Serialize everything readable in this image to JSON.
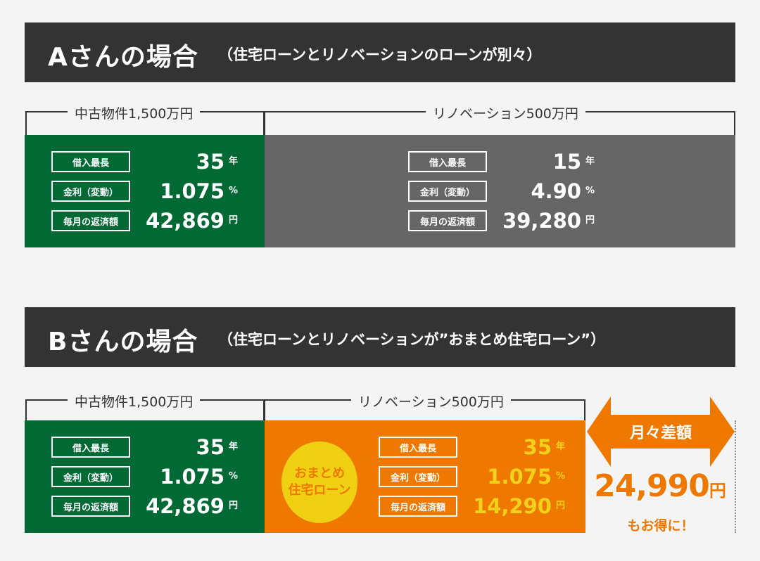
{
  "case_a": {
    "title": "Aさんの場合",
    "subtitle": "（住宅ローンとリノベーションのローンが別々）",
    "property_label": "中古物件1,500万円",
    "renovation_label": "リノベーション500万円",
    "property": {
      "rows": [
        {
          "label": "借入最長",
          "value": "35",
          "unit": "年"
        },
        {
          "label": "金利（変動）",
          "value": "1.075",
          "unit": "%"
        },
        {
          "label": "毎月の返済額",
          "value": "42,869",
          "unit": "円"
        }
      ]
    },
    "renovation": {
      "rows": [
        {
          "label": "借入最長",
          "value": "15",
          "unit": "年"
        },
        {
          "label": "金利（変動）",
          "value": "4.90",
          "unit": "%"
        },
        {
          "label": "毎月の返済額",
          "value": "39,280",
          "unit": "円"
        }
      ]
    }
  },
  "case_b": {
    "title": "Bさんの場合",
    "subtitle": "（住宅ローンとリノベーションが”おまとめ住宅ローン”）",
    "property_label": "中古物件1,500万円",
    "renovation_label": "リノベーション500万円",
    "property": {
      "rows": [
        {
          "label": "借入最長",
          "value": "35",
          "unit": "年"
        },
        {
          "label": "金利（変動）",
          "value": "1.075",
          "unit": "%"
        },
        {
          "label": "毎月の返済額",
          "value": "42,869",
          "unit": "円"
        }
      ]
    },
    "badge": "おまとめ\n住宅ローン",
    "renovation": {
      "rows": [
        {
          "label": "借入最長",
          "value": "35",
          "unit": "年"
        },
        {
          "label": "金利（変動）",
          "value": "1.075",
          "unit": "%"
        },
        {
          "label": "毎月の返済額",
          "value": "14,290",
          "unit": "円"
        }
      ]
    },
    "difference": {
      "label": "月々差額",
      "value": "24,990",
      "unit": "円",
      "note": "もお得に！"
    }
  },
  "colors": {
    "green": "#006934",
    "gray": "#666666",
    "orange": "#ee7800",
    "yellow": "#f0d012",
    "dark": "#333333"
  }
}
